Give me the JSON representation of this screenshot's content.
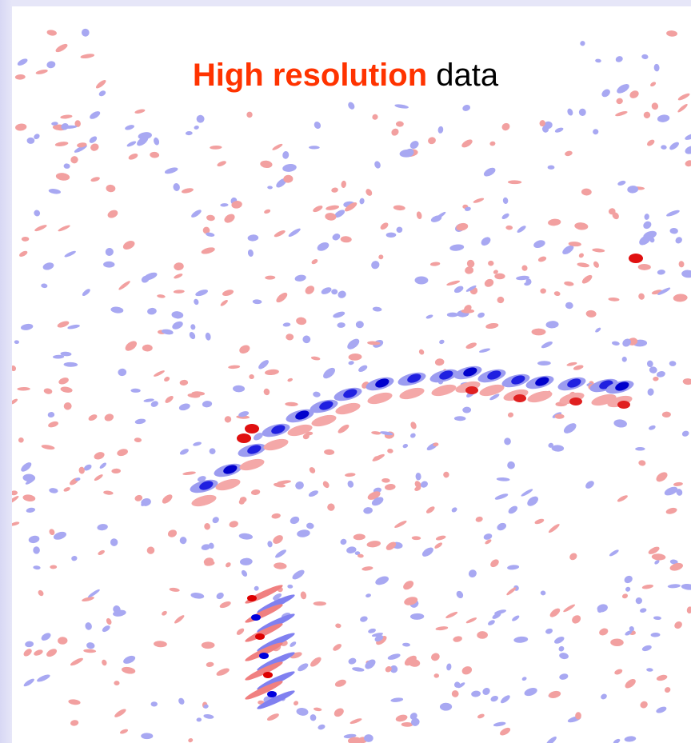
{
  "title": {
    "highlight": "High resolution",
    "rest": "data"
  }
}
